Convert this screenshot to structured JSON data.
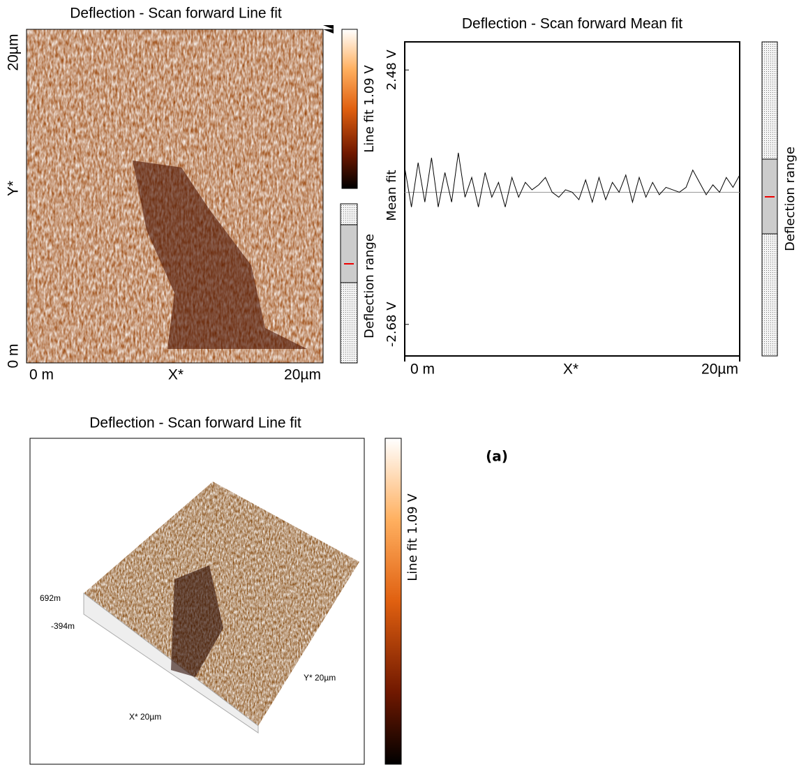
{
  "chart_data": {
    "type": "line",
    "title": "Deflection - Scan forward   Mean fit",
    "x_label": "X*",
    "y_label": "Mean fit",
    "xlim": [
      0,
      20
    ],
    "xticks": [
      {
        "value": 0,
        "label": "0 m"
      },
      {
        "value": 20,
        "label": "20µm"
      }
    ],
    "ylim": [
      -3.32,
      3.05
    ],
    "yticks": [
      {
        "value": 2.48,
        "label": "2.48 V"
      },
      {
        "value": -2.68,
        "label": "-2.68 V"
      }
    ],
    "side_bar_label": "Deflection range",
    "x": [
      0,
      0.4,
      0.8,
      1.2,
      1.6,
      2,
      2.4,
      2.8,
      3.2,
      3.6,
      4,
      4.4,
      4.8,
      5.2,
      5.6,
      6,
      6.4,
      6.8,
      7.2,
      7.6,
      8,
      8.4,
      8.8,
      9.2,
      9.6,
      10,
      10.4,
      10.8,
      11.2,
      11.6,
      12,
      12.4,
      12.8,
      13.2,
      13.6,
      14,
      14.4,
      14.8,
      15.2,
      15.6,
      16,
      16.4,
      16.8,
      17.2,
      17.6,
      18,
      18.4,
      18.8,
      19.2,
      19.6,
      20
    ],
    "series": [
      {
        "color": "#000000",
        "values": [
          0.5,
          -0.3,
          0.6,
          -0.2,
          0.7,
          -0.3,
          0.4,
          -0.2,
          0.8,
          -0.1,
          0.3,
          -0.3,
          0.4,
          -0.1,
          0.2,
          -0.3,
          0.3,
          -0.1,
          0.2,
          0.05,
          0.15,
          0.3,
          0.0,
          -0.1,
          0.05,
          0.0,
          -0.15,
          0.25,
          -0.2,
          0.3,
          -0.15,
          0.2,
          0.0,
          0.35,
          -0.2,
          0.3,
          -0.1,
          0.2,
          -0.05,
          0.1,
          0.05,
          0.0,
          0.1,
          0.45,
          0.2,
          -0.05,
          0.15,
          0.0,
          0.3,
          0.1,
          0.35
        ]
      }
    ]
  },
  "image_2d": {
    "title": "Deflection - Scan forward   Line fit",
    "y_top": "20µm",
    "y_label": "Y*",
    "y_bottom": "0 m",
    "x_left": "0 m",
    "x_label": "X*",
    "x_right": "20µm",
    "colorbar_label": "Line fit 1.09 V",
    "range_label": "Deflection range"
  },
  "image_3d": {
    "title": "Deflection - Scan forward   Line fit",
    "z_top": "692m",
    "z_bottom": "-394m",
    "x_label": "X* 20µm",
    "y_label": "Y* 20µm",
    "colorbar_label": "Line fit 1.09 V"
  },
  "panel_label": "(a)"
}
